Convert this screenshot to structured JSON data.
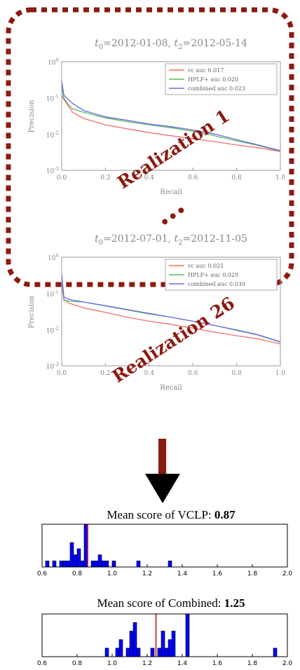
{
  "colors": {
    "frame": "#8b1a10",
    "vc": "#f26d6d",
    "hplp": "#5cb85c",
    "combined": "#6b6bea",
    "bar": "#0000ff",
    "mean_line": "#cc0000",
    "arrow_shaft": "#8b1a10",
    "arrow_head": "#000000"
  },
  "ellipsis": "•••",
  "chart_data": [
    {
      "type": "line",
      "title_parts": {
        "t0": "=2012-01-08",
        "t2": "=2012-05-14"
      },
      "xlabel": "Recall",
      "ylabel": "Precision",
      "xlim": [
        0,
        1
      ],
      "ylim": [
        0.001,
        1
      ],
      "yscale": "log",
      "xticks": [
        "0.0",
        "0.2",
        "0.4",
        "0.6",
        "0.8",
        "1.0"
      ],
      "yticks": [
        {
          "base": "10",
          "exp": "0"
        },
        {
          "base": "10",
          "exp": "-1"
        },
        {
          "base": "10",
          "exp": "-2"
        },
        {
          "base": "10",
          "exp": "-3"
        }
      ],
      "legend": "top-right",
      "annotation": "Realization 1",
      "series": [
        {
          "name": "vc auc 0.017",
          "color_key": "vc",
          "x": [
            0,
            0.01,
            0.03,
            0.05,
            0.1,
            0.2,
            0.3,
            0.4,
            0.5,
            0.6,
            0.7,
            0.8,
            0.9,
            1.0
          ],
          "y": [
            0.12,
            0.09,
            0.06,
            0.04,
            0.027,
            0.018,
            0.014,
            0.011,
            0.009,
            0.0075,
            0.0062,
            0.005,
            0.0042,
            0.0033
          ]
        },
        {
          "name": "HPLP+ auc 0.020",
          "color_key": "hplp",
          "x": [
            0,
            0.01,
            0.03,
            0.05,
            0.1,
            0.2,
            0.3,
            0.4,
            0.5,
            0.6,
            0.7,
            0.8,
            0.9,
            1.0
          ],
          "y": [
            0.2,
            0.1,
            0.065,
            0.05,
            0.04,
            0.028,
            0.022,
            0.018,
            0.015,
            0.012,
            0.009,
            0.0065,
            0.0048,
            0.0034
          ]
        },
        {
          "name": "combined auc 0.023",
          "color_key": "combined",
          "x": [
            0,
            0.01,
            0.03,
            0.05,
            0.1,
            0.2,
            0.3,
            0.4,
            0.5,
            0.6,
            0.7,
            0.8,
            0.9,
            1.0
          ],
          "y": [
            0.3,
            0.12,
            0.09,
            0.07,
            0.045,
            0.03,
            0.024,
            0.019,
            0.016,
            0.013,
            0.01,
            0.007,
            0.005,
            0.0035
          ]
        }
      ]
    },
    {
      "type": "line",
      "title_parts": {
        "t0": "=2012-07-01",
        "t2": "=2012-11-05"
      },
      "xlabel": "Recall",
      "ylabel": "Precision",
      "xlim": [
        0,
        1
      ],
      "ylim": [
        0.001,
        1
      ],
      "yscale": "log",
      "xticks": [
        "0.0",
        "0.2",
        "0.4",
        "0.6",
        "0.8",
        "1.0"
      ],
      "yticks": [
        {
          "base": "10",
          "exp": "0"
        },
        {
          "base": "10",
          "exp": "-1"
        },
        {
          "base": "10",
          "exp": "-2"
        },
        {
          "base": "10",
          "exp": "-3"
        }
      ],
      "legend": "top-right",
      "annotation": "Realization 26",
      "series": [
        {
          "name": "vc auc 0.021",
          "color_key": "vc",
          "x": [
            0,
            0.01,
            0.03,
            0.05,
            0.1,
            0.2,
            0.3,
            0.4,
            0.5,
            0.6,
            0.7,
            0.8,
            0.9,
            1.0
          ],
          "y": [
            0.15,
            0.07,
            0.055,
            0.05,
            0.04,
            0.03,
            0.022,
            0.017,
            0.014,
            0.011,
            0.0085,
            0.0068,
            0.0055,
            0.004
          ]
        },
        {
          "name": "HPLP+ auc 0.029",
          "color_key": "hplp",
          "x": [
            0,
            0.01,
            0.03,
            0.05,
            0.1,
            0.2,
            0.3,
            0.4,
            0.5,
            0.6,
            0.7,
            0.8,
            0.9,
            1.0
          ],
          "y": [
            0.25,
            0.065,
            0.062,
            0.06,
            0.058,
            0.045,
            0.035,
            0.027,
            0.022,
            0.017,
            0.013,
            0.0095,
            0.007,
            0.0045
          ]
        },
        {
          "name": "combined auc 0.030",
          "color_key": "combined",
          "x": [
            0,
            0.01,
            0.03,
            0.05,
            0.1,
            0.2,
            0.3,
            0.4,
            0.5,
            0.6,
            0.7,
            0.8,
            0.9,
            1.0
          ],
          "y": [
            0.35,
            0.08,
            0.07,
            0.065,
            0.058,
            0.046,
            0.036,
            0.028,
            0.022,
            0.017,
            0.013,
            0.0098,
            0.0072,
            0.0046
          ]
        }
      ]
    },
    {
      "type": "bar",
      "title": "Mean score of VCLP:",
      "title_value": "0.87",
      "xlim": [
        0.6,
        2.0
      ],
      "xticks": [
        "0.6",
        "0.8",
        "1.0",
        "1.2",
        "1.4",
        "1.6",
        "1.8",
        "2.0"
      ],
      "bin_width": 0.02,
      "mean_line": 0.86,
      "bins": [
        {
          "x": 0.63,
          "h": 1
        },
        {
          "x": 0.67,
          "h": 1
        },
        {
          "x": 0.71,
          "h": 1
        },
        {
          "x": 0.73,
          "h": 1
        },
        {
          "x": 0.75,
          "h": 1
        },
        {
          "x": 0.77,
          "h": 4
        },
        {
          "x": 0.79,
          "h": 2
        },
        {
          "x": 0.81,
          "h": 3
        },
        {
          "x": 0.83,
          "h": 1
        },
        {
          "x": 0.85,
          "h": 7
        },
        {
          "x": 0.89,
          "h": 1
        },
        {
          "x": 0.91,
          "h": 1
        },
        {
          "x": 0.93,
          "h": 2
        },
        {
          "x": 0.95,
          "h": 1
        },
        {
          "x": 0.97,
          "h": 1
        },
        {
          "x": 1.01,
          "h": 1
        },
        {
          "x": 1.15,
          "h": 1
        },
        {
          "x": 1.33,
          "h": 1
        }
      ]
    },
    {
      "type": "bar",
      "title": "Mean score of Combined:",
      "title_value": "1.25",
      "xlim": [
        0.6,
        2.0
      ],
      "xticks": [
        "0.6",
        "0.8",
        "1.0",
        "1.2",
        "1.4",
        "1.6",
        "1.8",
        "2.0"
      ],
      "bin_width": 0.02,
      "mean_line": 1.25,
      "bins": [
        {
          "x": 0.97,
          "h": 1
        },
        {
          "x": 1.03,
          "h": 1
        },
        {
          "x": 1.05,
          "h": 2
        },
        {
          "x": 1.09,
          "h": 1
        },
        {
          "x": 1.11,
          "h": 3
        },
        {
          "x": 1.13,
          "h": 4
        },
        {
          "x": 1.15,
          "h": 1
        },
        {
          "x": 1.23,
          "h": 1
        },
        {
          "x": 1.27,
          "h": 1
        },
        {
          "x": 1.29,
          "h": 3
        },
        {
          "x": 1.31,
          "h": 1
        },
        {
          "x": 1.33,
          "h": 2
        },
        {
          "x": 1.35,
          "h": 3
        },
        {
          "x": 1.43,
          "h": 5
        },
        {
          "x": 1.93,
          "h": 1
        }
      ]
    }
  ]
}
